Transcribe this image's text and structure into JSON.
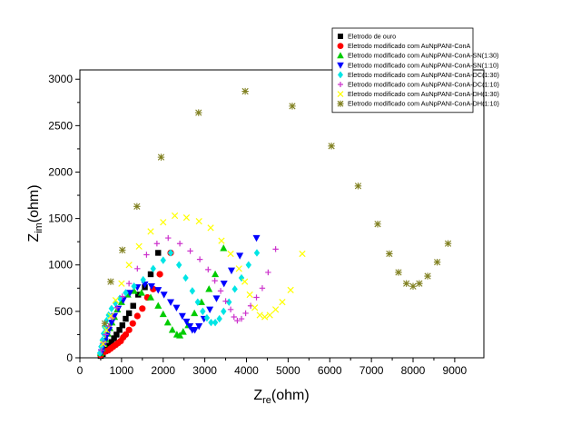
{
  "chart_data": {
    "type": "scatter",
    "title": "",
    "xlabel": {
      "main": "Z",
      "sub": "re",
      "unit": "(ohm)"
    },
    "ylabel": {
      "main": "Z",
      "sub": "im",
      "unit": "(ohm)"
    },
    "xlim": [
      0,
      9700
    ],
    "ylim": [
      0,
      3100
    ],
    "xticks": [
      0,
      1000,
      2000,
      3000,
      4000,
      5000,
      6000,
      7000,
      8000,
      9000
    ],
    "yticks": [
      0,
      500,
      1000,
      1500,
      2000,
      2500,
      3000
    ],
    "grid": false,
    "legend_position": "top-right",
    "series": [
      {
        "name": "Eletrodo de ouro",
        "marker": "square",
        "color": "#000000",
        "x": [
          500,
          550,
          600,
          650,
          700,
          760,
          820,
          880,
          950,
          1020,
          1100,
          1180,
          1280,
          1400,
          1560,
          1700,
          1880
        ],
        "y": [
          20,
          40,
          70,
          100,
          130,
          170,
          210,
          250,
          300,
          350,
          420,
          480,
          560,
          680,
          760,
          900,
          1130
        ]
      },
      {
        "name": "Eletrodo modificado com AuNpPANI-ConA",
        "marker": "circle",
        "color": "#ff0000",
        "x": [
          500,
          530,
          570,
          620,
          680,
          740,
          800,
          860,
          920,
          980,
          1040,
          1100,
          1180,
          1270,
          1380,
          1500,
          1620,
          1760,
          1920,
          2180
        ],
        "y": [
          30,
          50,
          60,
          70,
          80,
          100,
          120,
          140,
          160,
          180,
          220,
          250,
          300,
          370,
          450,
          530,
          650,
          740,
          900,
          1130
        ]
      },
      {
        "name": "Eletrodo modificado com AuNpPANI-ConA-SN(1:30)",
        "marker": "triangle-up",
        "color": "#00cc00",
        "x": [
          500,
          540,
          580,
          620,
          670,
          720,
          770,
          830,
          900,
          1000,
          1150,
          1300,
          1480,
          1700,
          1880,
          2000,
          2110,
          2220,
          2330,
          2400,
          2480,
          2600,
          2750,
          2920,
          3100,
          3250,
          3450
        ],
        "y": [
          50,
          100,
          150,
          200,
          260,
          320,
          380,
          440,
          520,
          600,
          680,
          720,
          700,
          650,
          560,
          470,
          380,
          300,
          250,
          240,
          280,
          350,
          480,
          600,
          740,
          900,
          1180
        ]
      },
      {
        "name": "Eletrodo modificado com AuNpPANI-ConA-SN(1:10)",
        "marker": "triangle-down",
        "color": "#0000ff",
        "x": [
          520,
          560,
          600,
          650,
          700,
          760,
          830,
          920,
          1040,
          1200,
          1380,
          1560,
          1720,
          1880,
          2020,
          2180,
          2320,
          2460,
          2560,
          2640,
          2700,
          2760,
          2860,
          2980,
          3120,
          3280,
          3460,
          3640,
          3840,
          4240
        ],
        "y": [
          60,
          120,
          180,
          240,
          300,
          380,
          450,
          530,
          620,
          700,
          760,
          790,
          770,
          730,
          680,
          600,
          540,
          450,
          390,
          340,
          300,
          300,
          340,
          420,
          520,
          640,
          800,
          940,
          1100,
          1290
        ]
      },
      {
        "name": "Eletrodo modificado com AuNpPANI-ConA-DC(1:30)",
        "marker": "diamond",
        "color": "#00e5e5",
        "x": [
          480,
          510,
          540,
          570,
          600,
          640,
          690,
          760,
          850,
          960,
          1100,
          1300,
          1520,
          1760,
          2000,
          2180,
          2380,
          2540,
          2700,
          2830,
          2950,
          3050,
          3150,
          3250,
          3350,
          3450,
          3580,
          3720,
          3880,
          4050,
          4250
        ],
        "y": [
          50,
          120,
          190,
          260,
          330,
          400,
          460,
          530,
          590,
          640,
          700,
          770,
          840,
          960,
          1050,
          1130,
          1000,
          860,
          720,
          600,
          500,
          430,
          380,
          380,
          420,
          500,
          600,
          740,
          860,
          1000,
          1130
        ]
      },
      {
        "name": "Eletrodo modificado com AuNpPANI-ConA-DC(1:10)",
        "marker": "plus",
        "color": "#cc33cc",
        "x": [
          520,
          560,
          620,
          690,
          780,
          890,
          1020,
          1180,
          1380,
          1600,
          1850,
          2120,
          2400,
          2650,
          2880,
          3080,
          3240,
          3380,
          3500,
          3620,
          3700,
          3780,
          3880,
          3980,
          4100,
          4240,
          4380,
          4520,
          4700
        ],
        "y": [
          80,
          160,
          250,
          340,
          430,
          540,
          660,
          800,
          960,
          1110,
          1230,
          1290,
          1230,
          1150,
          1060,
          950,
          830,
          720,
          610,
          520,
          440,
          400,
          420,
          480,
          560,
          650,
          750,
          920,
          1170
        ]
      },
      {
        "name": "Eletrodo modificado com AuNpPANI-ConA-DH(1:30)",
        "marker": "x",
        "color": "#ffff00",
        "x": [
          560,
          640,
          740,
          860,
          1000,
          1180,
          1420,
          1700,
          2000,
          2280,
          2560,
          2860,
          3140,
          3400,
          3620,
          3820,
          3960,
          4080,
          4200,
          4320,
          4440,
          4560,
          4700,
          4860,
          5060,
          5340
        ],
        "y": [
          150,
          300,
          450,
          620,
          800,
          1000,
          1200,
          1360,
          1460,
          1530,
          1510,
          1470,
          1400,
          1260,
          1120,
          960,
          820,
          680,
          540,
          460,
          440,
          460,
          520,
          600,
          730,
          1120
        ]
      },
      {
        "name": "Eletrodo modificado com AuNpPANI-ConA-DH(1:10)",
        "marker": "asterisk",
        "color": "#808020",
        "x": [
          600,
          740,
          1020,
          1370,
          1950,
          2850,
          3970,
          5100,
          6040,
          6680,
          7150,
          7430,
          7650,
          7840,
          8000,
          8150,
          8350,
          8580,
          8840
        ],
        "y": [
          370,
          820,
          1160,
          1630,
          2160,
          2640,
          2870,
          2710,
          2280,
          1850,
          1440,
          1120,
          920,
          800,
          770,
          800,
          880,
          1030,
          1230
        ]
      }
    ]
  }
}
